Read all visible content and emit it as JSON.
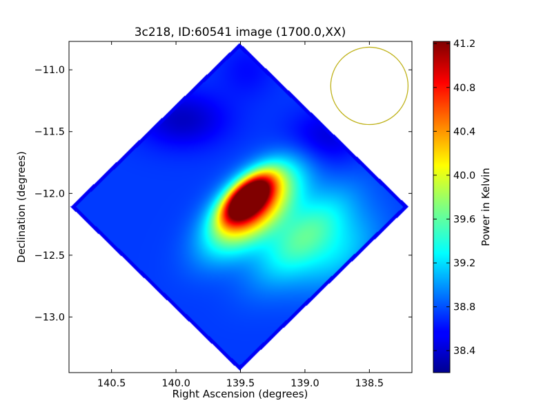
{
  "chart_data": {
    "type": "heatmap",
    "title": "3c218, ID:60541 image (1700.0,XX)",
    "xlabel": "Right Ascension (degrees)",
    "ylabel": "Declination (degrees)",
    "xlim": [
      140.83,
      138.17
    ],
    "ylim": [
      -13.45,
      -10.77
    ],
    "x_ticks": [
      {
        "value": 140.5,
        "label": "140.5"
      },
      {
        "value": 140.0,
        "label": "140.0"
      },
      {
        "value": 139.5,
        "label": "139.5"
      },
      {
        "value": 139.0,
        "label": "139.0"
      },
      {
        "value": 138.5,
        "label": "138.5"
      }
    ],
    "y_ticks": [
      {
        "value": -11.0,
        "label": "−11.0"
      },
      {
        "value": -11.5,
        "label": "−11.5"
      },
      {
        "value": -12.0,
        "label": "−12.0"
      },
      {
        "value": -12.5,
        "label": "−12.5"
      },
      {
        "value": -13.0,
        "label": "−13.0"
      }
    ],
    "grid": false,
    "colormap": "jet",
    "colorbar": {
      "label": "Power in Kelvin",
      "range": [
        38.2,
        41.22
      ],
      "ticks": [
        {
          "value": 41.2,
          "label": "41.2"
        },
        {
          "value": 40.8,
          "label": "40.8"
        },
        {
          "value": 40.4,
          "label": "40.4"
        },
        {
          "value": 40.0,
          "label": "40.0"
        },
        {
          "value": 39.6,
          "label": "39.6"
        },
        {
          "value": 39.2,
          "label": "39.2"
        },
        {
          "value": 38.8,
          "label": "38.8"
        },
        {
          "value": 38.4,
          "label": "38.4"
        }
      ]
    },
    "footprint": {
      "shape": "diamond",
      "vertices": [
        [
          139.5,
          -10.78
        ],
        [
          140.82,
          -12.1
        ],
        [
          139.5,
          -13.43
        ],
        [
          138.2,
          -12.1
        ]
      ]
    },
    "beam_circle": {
      "center": [
        138.5,
        -11.13
      ],
      "radius_deg": 0.3,
      "color": "#bfb21a"
    },
    "emission_components": [
      {
        "ra": 139.45,
        "dec": -12.03,
        "peak": 41.2,
        "width_deg": 0.18
      },
      {
        "ra": 139.4,
        "dec": -12.12,
        "peak": 40.6,
        "width_deg": 0.32
      },
      {
        "ra": 139.0,
        "dec": -12.35,
        "peak": 39.6,
        "width_deg": 0.35
      },
      {
        "ra": 138.7,
        "dec": -12.5,
        "peak": 39.1,
        "width_deg": 0.3
      }
    ],
    "background_level": 38.75
  }
}
